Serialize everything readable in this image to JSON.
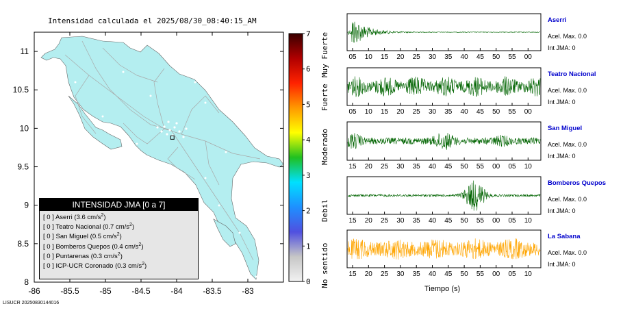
{
  "title": "Intensidad calculada el 2025/08/30_08:40:15_AM",
  "map": {
    "x_ticks": [
      "-86",
      "-85.5",
      "-85",
      "-84.5",
      "-84",
      "-83.5",
      "-83"
    ],
    "y_ticks": [
      "8",
      "8.5",
      "9",
      "9.5",
      "10",
      "10.5",
      "11"
    ],
    "x_range": [
      -86.0,
      -82.5
    ],
    "y_range": [
      8.0,
      11.25
    ],
    "marker": {
      "lon": -84.06,
      "lat": 9.88
    }
  },
  "legend": {
    "title": "INTENSIDAD JMA [0 a 7]",
    "rows": [
      {
        "code": "[ 0 ]",
        "station": "Aserri",
        "value": "(3.6 cm/s",
        "sup": "2",
        "end": ")"
      },
      {
        "code": "[ 0 ]",
        "station": "Teatro Nacional",
        "value": "(0.7 cm/s",
        "sup": "2",
        "end": ")"
      },
      {
        "code": "[ 0 ]",
        "station": "San Miguel",
        "value": "(0.5 cm/s",
        "sup": "2",
        "end": ")"
      },
      {
        "code": "[ 0 ]",
        "station": "Bomberos Quepos",
        "value": "(0.4 cm/s",
        "sup": "2",
        "end": ")"
      },
      {
        "code": "[ 0 ]",
        "station": "Puntarenas",
        "value": "(0.3 cm/s",
        "sup": "2",
        "end": ")"
      },
      {
        "code": "[ 0 ]",
        "station": "ICP-UCR Coronado",
        "value": "(0.3 cm/s",
        "sup": "2",
        "end": ")"
      }
    ]
  },
  "colorbar": {
    "ticks": [
      "0",
      "1",
      "2",
      "3",
      "4",
      "5",
      "6",
      "7"
    ],
    "labels": [
      "No sentido",
      "Debil",
      "Moderado",
      "Fuerte",
      "Muy Fuerte"
    ],
    "colors": [
      "#f2f2f2",
      "#c6c6c6",
      "#5050e0",
      "#1e90ff",
      "#00e0ff",
      "#20c020",
      "#ffff00",
      "#ff9900",
      "#ff2200",
      "#b00000",
      "#3a0000"
    ]
  },
  "chart_data": [
    {
      "type": "line",
      "name": "Aserri",
      "x_ticks": [
        "05",
        "10",
        "15",
        "20",
        "25",
        "30",
        "35",
        "40",
        "45",
        "50",
        "55",
        "00"
      ],
      "color": "#006400",
      "acel_max": "Acel. Max. 0.0",
      "int_jma": "Int JMA: 0"
    },
    {
      "type": "line",
      "name": "Teatro Nacional",
      "x_ticks": [
        "05",
        "10",
        "15",
        "20",
        "25",
        "30",
        "35",
        "40",
        "45",
        "50",
        "55",
        "00"
      ],
      "color": "#006400",
      "acel_max": "Acel. Max. 0.0",
      "int_jma": "Int JMA: 0"
    },
    {
      "type": "line",
      "name": "San Miguel",
      "x_ticks": [
        "15",
        "20",
        "25",
        "30",
        "35",
        "40",
        "45",
        "50",
        "55",
        "00",
        "05",
        "10"
      ],
      "color": "#006400",
      "acel_max": "Acel. Max. 0.0",
      "int_jma": "Int JMA: 0"
    },
    {
      "type": "line",
      "name": "Bomberos Quepos",
      "x_ticks": [
        "15",
        "20",
        "25",
        "30",
        "35",
        "40",
        "45",
        "50",
        "55",
        "00",
        "05",
        "10"
      ],
      "color": "#006400",
      "acel_max": "Acel. Max. 0.0",
      "int_jma": "Int JMA: 0"
    },
    {
      "type": "line",
      "name": "La Sabana",
      "x_ticks": [
        "15",
        "20",
        "25",
        "30",
        "35",
        "40",
        "45",
        "50",
        "55",
        "00",
        "05",
        "10"
      ],
      "color": "#ffa500",
      "acel_max": "Acel. Max. 0.0",
      "int_jma": "Int JMA: 0",
      "xlabel": "Tiempo (s)"
    }
  ],
  "footer": "LISUCR 20250830144016"
}
